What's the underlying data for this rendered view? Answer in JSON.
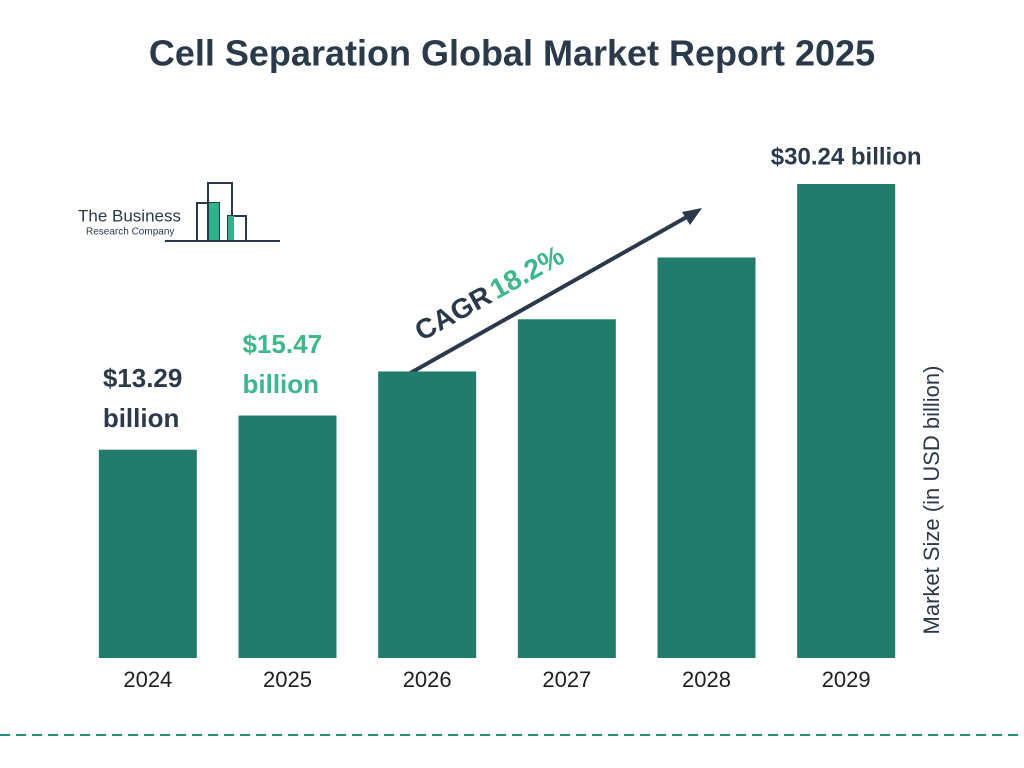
{
  "chart_data": {
    "type": "bar",
    "title": "Cell Separation Global Market Report 2025",
    "categories": [
      "2024",
      "2025",
      "2026",
      "2027",
      "2028",
      "2029"
    ],
    "values": [
      13.29,
      15.47,
      18.28,
      21.61,
      25.55,
      30.24
    ],
    "value_labels": [
      "$13.29 billion",
      "$15.47 billion",
      null,
      null,
      null,
      "$30.24 billion"
    ],
    "value_label_colors": [
      "#2b3a4a",
      "#3cb88b",
      null,
      null,
      null,
      "#2b3a4a"
    ],
    "color": "#217c6c",
    "y_label": "Market Size (in USD billion)",
    "cagr_label": "CAGR",
    "cagr_value": "18.2%",
    "logo": {
      "line1": "The Business",
      "line2": "Research Company"
    }
  }
}
